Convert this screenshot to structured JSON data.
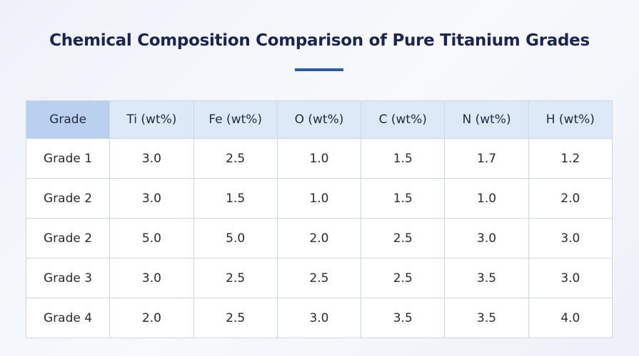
{
  "header": {
    "title": "Chemical Composition Comparison of Pure Titanium Grades"
  },
  "table": {
    "columns": [
      "Grade",
      "Ti (wt%)",
      "Fe (wt%)",
      "O (wt%)",
      "C (wt%)",
      "N (wt%)",
      "H (wt%)"
    ],
    "rows": [
      [
        "Grade 1",
        "3.0",
        "2.5",
        "1.0",
        "1.5",
        "1.7",
        "1.2"
      ],
      [
        "Grade 2",
        "3.0",
        "1.5",
        "1.0",
        "1.5",
        "1.0",
        "2.0"
      ],
      [
        "Grade 2",
        "5.0",
        "5.0",
        "2.0",
        "2.5",
        "3.0",
        "3.0"
      ],
      [
        "Grade 3",
        "3.0",
        "2.5",
        "2.5",
        "2.5",
        "3.5",
        "3.0"
      ],
      [
        "Grade 4",
        "2.0",
        "2.5",
        "3.0",
        "3.5",
        "3.5",
        "4.0"
      ]
    ]
  }
}
